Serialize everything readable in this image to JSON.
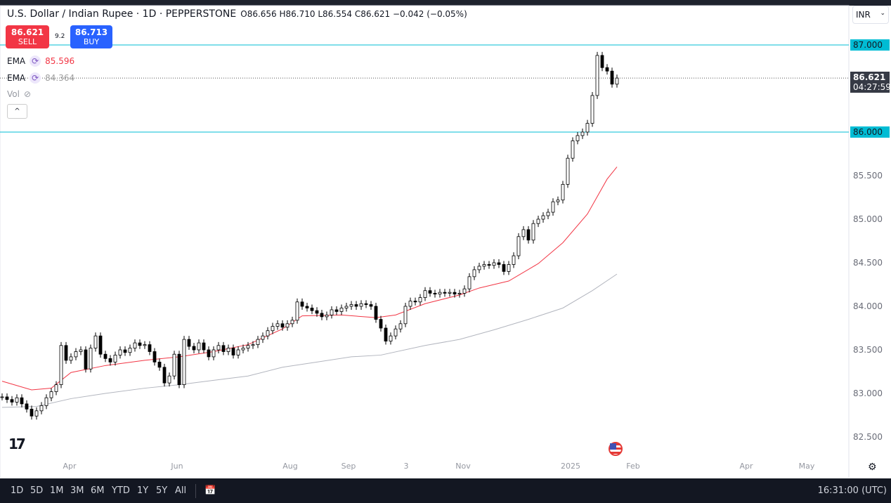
{
  "header": {
    "title": "U.S. Dollar / Indian Rupee · 1D · PEPPERSTONE",
    "ohlc": "O86.656 H86.710 L86.554 C86.621 −0.042 (−0.05%)"
  },
  "trade": {
    "sell_price": "86.621",
    "sell_label": "SELL",
    "buy_price": "86.713",
    "buy_label": "BUY",
    "spread": "9.2"
  },
  "indicators": [
    {
      "name": "EMA",
      "value": "85.596",
      "color": "#f23645"
    },
    {
      "name": "EMA",
      "value": "84.364",
      "color": "#9e9e9e"
    },
    {
      "name": "Vol",
      "value": ""
    }
  ],
  "currency": "INR",
  "price_axis": {
    "ticks": [
      "87.000",
      "86.000",
      "85.500",
      "85.000",
      "84.500",
      "84.000",
      "83.500",
      "83.000",
      "82.500"
    ],
    "current_price": "86.621",
    "countdown": "04:27:59"
  },
  "time_axis": [
    "Apr",
    "Jun",
    "Aug",
    "Sep",
    "3",
    "Nov",
    "2025",
    "Feb",
    "Apr",
    "May"
  ],
  "bottom": {
    "ranges": [
      "1D",
      "5D",
      "1M",
      "3M",
      "6M",
      "YTD",
      "1Y",
      "5Y",
      "All"
    ],
    "clock": "16:31:00 (UTC)"
  },
  "colors": {
    "level_line": "#00bcd4",
    "ema_fast": "#f23645",
    "ema_slow": "#b2b5be",
    "up": "#ffffff",
    "down": "#000000"
  },
  "chart_data": {
    "type": "candlestick",
    "ylim": [
      82.3,
      87.2
    ],
    "horizontal_levels": [
      87.0,
      86.0
    ],
    "closes": [
      82.96,
      82.93,
      82.9,
      82.95,
      82.88,
      82.82,
      82.74,
      82.8,
      82.86,
      82.95,
      83.02,
      83.1,
      83.55,
      83.38,
      83.42,
      83.48,
      83.5,
      83.28,
      83.52,
      83.66,
      83.45,
      83.4,
      83.36,
      83.44,
      83.5,
      83.47,
      83.52,
      83.58,
      83.55,
      83.56,
      83.48,
      83.36,
      83.3,
      83.12,
      83.2,
      83.45,
      83.1,
      83.62,
      83.54,
      83.5,
      83.58,
      83.5,
      83.42,
      83.5,
      83.55,
      83.48,
      83.52,
      83.44,
      83.5,
      83.52,
      83.55,
      83.56,
      83.62,
      83.66,
      83.72,
      83.77,
      83.8,
      83.76,
      83.8,
      83.84,
      84.05,
      84.0,
      83.98,
      83.95,
      83.92,
      83.88,
      83.9,
      83.96,
      83.94,
      83.98,
      84.0,
      84.02,
      84.0,
      84.03,
      84.02,
      84.0,
      83.85,
      83.75,
      83.6,
      83.66,
      83.74,
      83.8,
      84.0,
      84.06,
      84.05,
      84.1,
      84.18,
      84.15,
      84.14,
      84.16,
      84.15,
      84.16,
      84.14,
      84.15,
      84.2,
      84.34,
      84.42,
      84.46,
      84.48,
      84.47,
      84.5,
      84.48,
      84.4,
      84.48,
      84.58,
      84.8,
      84.88,
      84.76,
      84.95,
      85.0,
      85.04,
      85.08,
      85.2,
      85.22,
      85.4,
      85.7,
      85.9,
      85.96,
      86.0,
      86.1,
      86.42,
      86.88,
      86.74,
      86.7,
      86.55,
      86.62
    ],
    "ema_fast": [
      [
        0,
        83.14
      ],
      [
        6,
        83.04
      ],
      [
        10,
        83.06
      ],
      [
        14,
        83.24
      ],
      [
        21,
        83.32
      ],
      [
        29,
        83.38
      ],
      [
        36,
        83.42
      ],
      [
        43,
        83.48
      ],
      [
        50,
        83.56
      ],
      [
        57,
        83.74
      ],
      [
        61,
        83.89
      ],
      [
        69,
        83.9
      ],
      [
        76,
        83.87
      ],
      [
        80,
        83.9
      ],
      [
        86,
        84.03
      ],
      [
        93,
        84.13
      ],
      [
        97,
        84.21
      ],
      [
        103,
        84.29
      ],
      [
        109,
        84.49
      ],
      [
        114,
        84.73
      ],
      [
        119,
        85.06
      ],
      [
        123,
        85.46
      ],
      [
        125,
        85.6
      ]
    ],
    "ema_slow": [
      [
        0,
        82.84
      ],
      [
        7,
        82.85
      ],
      [
        14,
        82.94
      ],
      [
        21,
        83.0
      ],
      [
        29,
        83.06
      ],
      [
        36,
        83.1
      ],
      [
        43,
        83.15
      ],
      [
        50,
        83.2
      ],
      [
        57,
        83.3
      ],
      [
        64,
        83.36
      ],
      [
        71,
        83.42
      ],
      [
        77,
        83.44
      ],
      [
        86,
        83.55
      ],
      [
        93,
        83.62
      ],
      [
        100,
        83.73
      ],
      [
        107,
        83.85
      ],
      [
        114,
        83.98
      ],
      [
        120,
        84.18
      ],
      [
        125,
        84.37
      ]
    ]
  }
}
